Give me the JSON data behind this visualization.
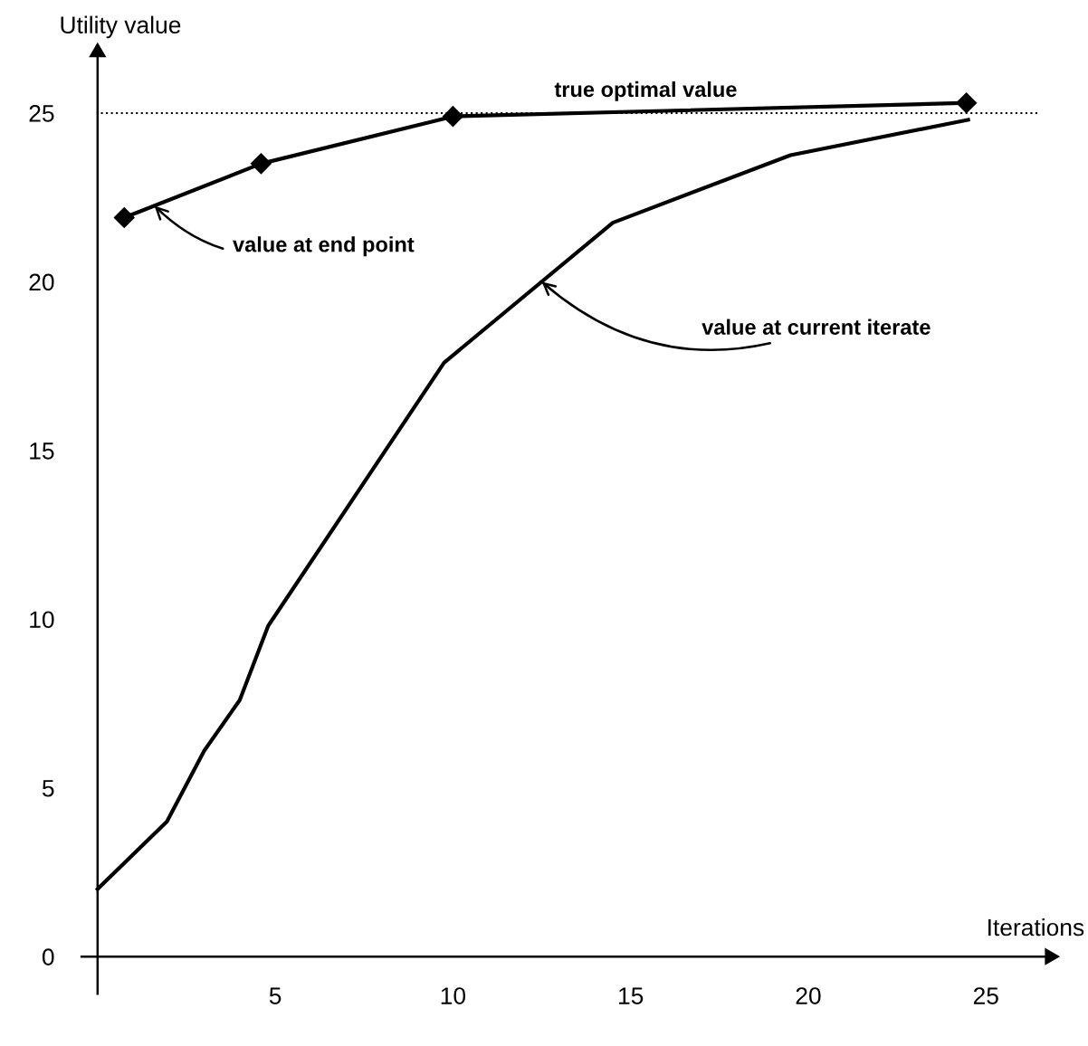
{
  "chart_data": {
    "type": "line",
    "xlabel": "Iterations",
    "ylabel": "Utility value",
    "xlim": [
      -0.45,
      26.8
    ],
    "ylim": [
      -1.1,
      26.8
    ],
    "xticks": [
      5,
      10,
      15,
      20,
      25
    ],
    "yticks": [
      0,
      5,
      10,
      15,
      20,
      25
    ],
    "grid": false,
    "legend": false,
    "series": [
      {
        "color": "#000000",
        "marker": "diamond",
        "x": [
          0.75,
          4.6,
          10,
          24.45
        ],
        "values": [
          21.9,
          23.5,
          24.9,
          25.3
        ]
      },
      {
        "color": "#000000",
        "marker": "none",
        "x": [
          0,
          1.95,
          3,
          4,
          4.8,
          9.75,
          14.5,
          19.5,
          24.5
        ],
        "values": [
          2,
          4,
          6.1,
          7.6,
          9.8,
          17.6,
          21.75,
          23.75,
          24.8
        ]
      }
    ],
    "ref_lines": [
      {
        "axis": "y",
        "value": 25,
        "label": "true optimal value",
        "color": "#000000",
        "line_style": "dotted"
      }
    ],
    "annotations": [
      {
        "text": "value at end point",
        "x": 1.6,
        "y": 22.25
      },
      {
        "text": "value at current iterate",
        "x": 12.5,
        "y": 20.0
      }
    ]
  }
}
